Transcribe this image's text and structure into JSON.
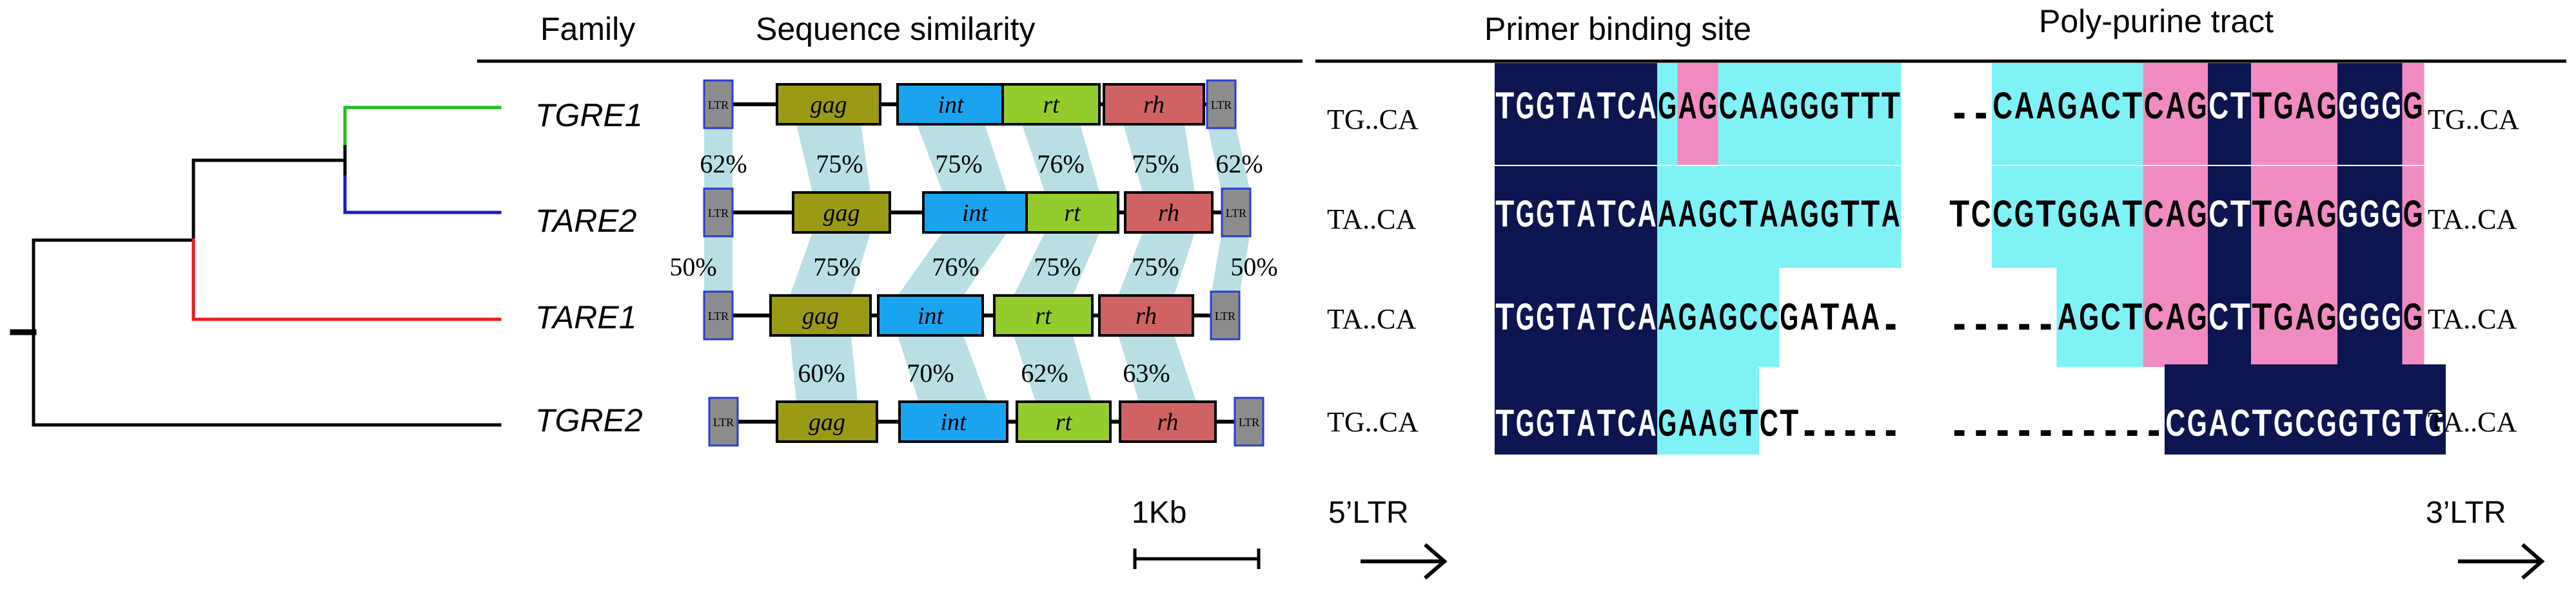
{
  "headers": {
    "family": "Family",
    "similarity": "Sequence similarity",
    "pbs": "Primer binding site",
    "ppt": "Poly-purine tract"
  },
  "colors": {
    "green": "#1fbf1f",
    "blue": "#1c1cc8",
    "red": "#e81c1c",
    "black": "#000000",
    "ltr_fill": "#8c8c8c",
    "ltr_border": "#2b3cd6",
    "gag": "#9a9a14",
    "int": "#1aa3ef",
    "rt": "#94cc2e",
    "rh": "#cf6363",
    "band": "#b9dfe4",
    "navy": "#0c1550",
    "cyan": "#7ff2f6",
    "pink": "#f08cc2"
  },
  "families": [
    {
      "name": "TGRE1",
      "term5": "TG..CA",
      "term3": "TG..CA",
      "branch": "green"
    },
    {
      "name": "TARE2",
      "term5": "TA..CA",
      "term3": "TA..CA",
      "branch": "blue"
    },
    {
      "name": "TARE1",
      "term5": "TA..CA",
      "term3": "TA..CA",
      "branch": "red"
    },
    {
      "name": "TGRE2",
      "term5": "TG..CA",
      "term3": "TA..CA",
      "branch": "black"
    }
  ],
  "gene_labels": {
    "ltr": "LTR",
    "gag": "gag",
    "int": "int",
    "rt": "rt",
    "rh": "rh"
  },
  "similarity_rows": [
    [
      "62%",
      "75%",
      "75%",
      "76%",
      "75%",
      "62%"
    ],
    [
      "50%",
      "75%",
      "76%",
      "75%",
      "75%",
      "50%"
    ],
    [
      "60%",
      "70%",
      "62%",
      "63%"
    ]
  ],
  "pbs_rows": [
    "TGGTATCAGAGCAAGGGTTT",
    "TGGTATCAAAGCTAAGGTTA",
    "TGGTATCAAGAGCCGATAA.",
    "TGGTATCAGAAGTCT....."
  ],
  "pbs_highlight": [
    "NNNNNNNNCPPCCCCCCCCC",
    "NNNNNNNNCCCCCCCCCCCC",
    "NNNNNNNNCCCCCCWWWWWW",
    "NNNNNNNNCCCCCWWWWWWW"
  ],
  "ppt_rows": [
    "..CAAGACTCAGCTTGAGGGGG",
    "TCCGTGGATCAGCTTGAGGGGG",
    ".....AGCTCAGCTTGAGGGGG",
    "..........CGACTGCGGTGTG"
  ],
  "ppt_highlight": [
    "WWCCCCCCCPPPNNPPPPNNNP",
    "WWCCCCCCCPPPNNPPPPNNNP",
    "WWWWWCCCCPPPNNPPPPNNNP",
    "WWWWWWWWWWNNNNNNNNNNNNN"
  ],
  "scale": {
    "label": "1Kb"
  },
  "ltr5": "5’LTR",
  "ltr3": "3’LTR"
}
